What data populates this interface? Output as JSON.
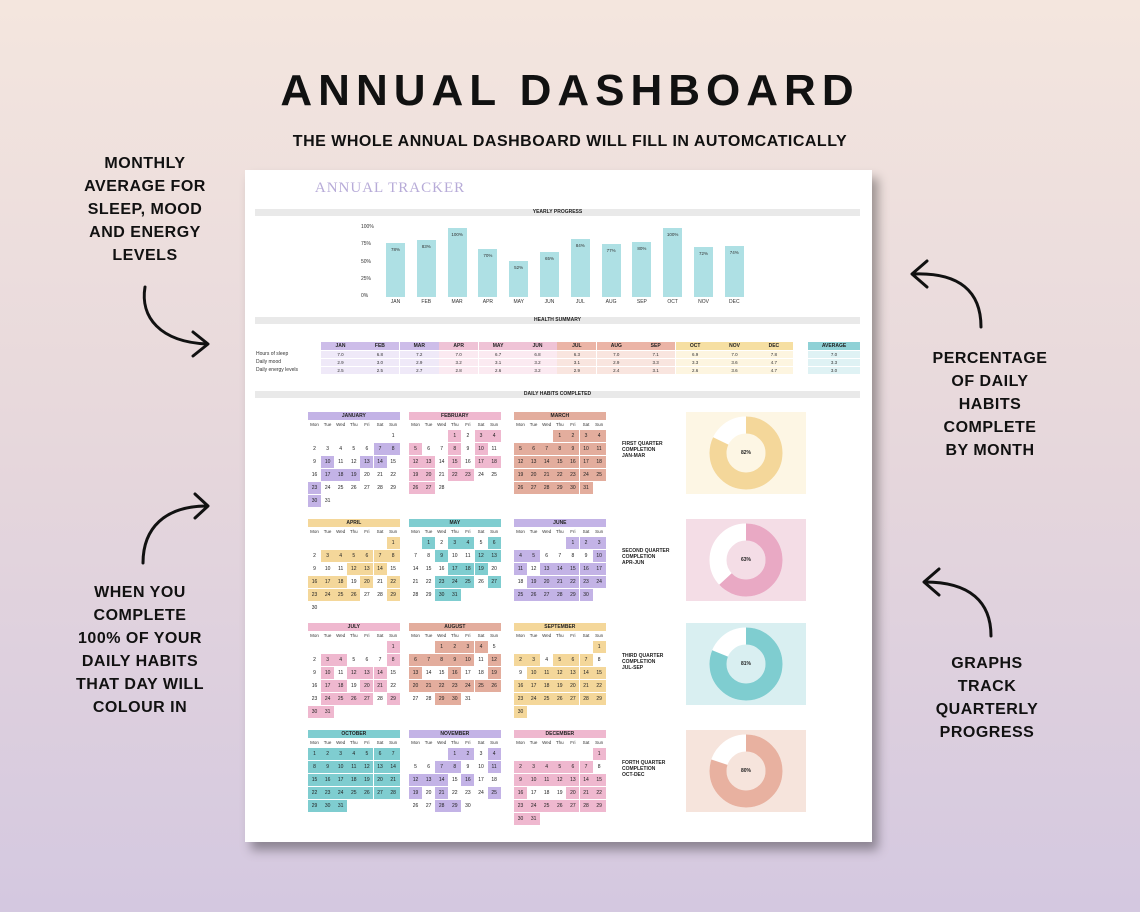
{
  "header": {
    "title": "ANNUAL DASHBOARD",
    "subtitle": "THE WHOLE ANNUAL DASHBOARD WILL FILL IN AUTOMCATICALLY"
  },
  "side_notes": {
    "top_left": [
      "MONTHLY",
      "AVERAGE FOR",
      "SLEEP, MOOD",
      "AND ENERGY",
      "LEVELS"
    ],
    "bottom_left": [
      "WHEN YOU",
      "COMPLETE",
      "100% OF YOUR",
      "DAILY HABITS",
      "THAT DAY WILL",
      "COLOUR IN"
    ],
    "top_right": [
      "PERCENTAGE",
      "OF DAILY",
      "HABITS",
      "COMPLETE",
      "BY MONTH"
    ],
    "bottom_right": [
      "GRAPHS",
      "TRACK",
      "QUARTERLY",
      "PROGRESS"
    ]
  },
  "tracker": {
    "title": "ANNUAL TRACKER",
    "yearly_progress_label": "YEARLY PROGRESS",
    "health_summary_label": "HEALTH SUMMARY",
    "daily_habits_label": "DAILY HABITS COMPLETED"
  },
  "chart_data": {
    "type": "bar",
    "title": "YEARLY PROGRESS",
    "categories": [
      "JAN",
      "FEB",
      "MAR",
      "APR",
      "MAY",
      "JUN",
      "JUL",
      "AUG",
      "SEP",
      "OCT",
      "NOV",
      "DEC"
    ],
    "values": [
      78,
      83,
      100,
      70,
      52,
      65,
      84,
      77,
      80,
      100,
      72,
      74
    ],
    "value_labels": [
      "78%",
      "83%",
      "100%",
      "70%",
      "52%",
      "65%",
      "84%",
      "77%",
      "80%",
      "100%",
      "72%",
      "74%"
    ],
    "y_ticks": [
      "100%",
      "75%",
      "50%",
      "25%",
      "0%"
    ],
    "ylim": [
      0,
      100
    ],
    "bar_color": "#aee0e4"
  },
  "health_summary": {
    "months": [
      "JAN",
      "FEB",
      "MAR",
      "APR",
      "MAY",
      "JUN",
      "JUL",
      "AUG",
      "SEP",
      "OCT",
      "NOV",
      "DEC"
    ],
    "month_colors": [
      "#cdbde9",
      "#cdbde9",
      "#cdbde9",
      "#efc3d6",
      "#efc3d6",
      "#efc3d6",
      "#ebb4a6",
      "#ebb4a6",
      "#ebb4a6",
      "#f6dfa2",
      "#f6dfa2",
      "#f6dfa2"
    ],
    "row_colors": [
      "#efe9f8",
      "#efe9f8",
      "#efe9f8",
      "#fbeaf1",
      "#fbeaf1",
      "#fbeaf1",
      "#f9e5df",
      "#f9e5df",
      "#f9e5df",
      "#fdf5e0",
      "#fdf5e0",
      "#fdf5e0"
    ],
    "rows": [
      {
        "label": "Hours of sleep",
        "values": [
          "7.0",
          "6.8",
          "7.2",
          "7.0",
          "6.7",
          "6.8",
          "6.3",
          "7.0",
          "7.1",
          "6.9",
          "7.0",
          "7.8"
        ],
        "average": "7.0"
      },
      {
        "label": "Daily mood",
        "values": [
          "2.9",
          "3.0",
          "2.9",
          "3.2",
          "3.1",
          "3.2",
          "3.1",
          "2.9",
          "3.3",
          "3.3",
          "3.6",
          "4.7"
        ],
        "average": "3.3"
      },
      {
        "label": "Daily energy levels",
        "values": [
          "2.5",
          "2.5",
          "2.7",
          "2.8",
          "2.6",
          "3.2",
          "2.9",
          "2.4",
          "3.1",
          "2.6",
          "3.6",
          "4.7"
        ],
        "average": "3.0"
      }
    ],
    "average_label": "AVERAGE",
    "average_color": "#8fd1d6"
  },
  "calendar": {
    "weekdays": [
      "Mon",
      "Tue",
      "Wed",
      "Thu",
      "Fri",
      "Sat",
      "Sun"
    ],
    "months": [
      {
        "name": "JANUARY",
        "color": "#c3b3e6",
        "start": 6,
        "days": 31,
        "filled": [
          7,
          8,
          10,
          13,
          14,
          17,
          18,
          19,
          23,
          30
        ]
      },
      {
        "name": "FEBRUARY",
        "color": "#efb8cf",
        "start": 3,
        "days": 28,
        "filled": [
          1,
          3,
          4,
          5,
          8,
          10,
          12,
          13,
          15,
          17,
          18,
          19,
          20,
          22,
          23,
          26,
          27
        ]
      },
      {
        "name": "MARCH",
        "color": "#e3ad9d",
        "start": 3,
        "days": 31,
        "filled": [
          1,
          2,
          3,
          4,
          5,
          6,
          7,
          8,
          9,
          10,
          11,
          12,
          13,
          14,
          15,
          16,
          17,
          18,
          19,
          20,
          21,
          22,
          23,
          24,
          25,
          26,
          27,
          28,
          29,
          30,
          31
        ]
      },
      {
        "name": "APRIL",
        "color": "#f4d79a",
        "start": 6,
        "days": 30,
        "filled": [
          1,
          3,
          4,
          5,
          6,
          7,
          8,
          12,
          13,
          14,
          16,
          17,
          18,
          20,
          22,
          23,
          24,
          25,
          26,
          29
        ]
      },
      {
        "name": "MAY",
        "color": "#7fcdd0",
        "start": 1,
        "days": 31,
        "filled": [
          1,
          3,
          4,
          6,
          9,
          12,
          13,
          17,
          18,
          19,
          23,
          24,
          25,
          27,
          30,
          31
        ]
      },
      {
        "name": "JUNE",
        "color": "#c3b3e6",
        "start": 4,
        "days": 30,
        "filled": [
          1,
          2,
          3,
          4,
          5,
          10,
          11,
          13,
          14,
          15,
          16,
          17,
          19,
          20,
          21,
          22,
          23,
          24,
          25,
          26,
          27,
          28,
          29,
          30
        ]
      },
      {
        "name": "JULY",
        "color": "#efb8cf",
        "start": 6,
        "days": 31,
        "filled": [
          1,
          3,
          4,
          8,
          10,
          12,
          13,
          14,
          17,
          18,
          20,
          21,
          24,
          25,
          26,
          27,
          29,
          30,
          31
        ]
      },
      {
        "name": "AUGUST",
        "color": "#e3ad9d",
        "start": 2,
        "days": 31,
        "filled": [
          1,
          2,
          3,
          4,
          6,
          7,
          8,
          9,
          10,
          12,
          13,
          16,
          19,
          20,
          21,
          22,
          23,
          24,
          25,
          26,
          29,
          30
        ]
      },
      {
        "name": "SEPTEMBER",
        "color": "#f4d79a",
        "start": 6,
        "days": 30,
        "filled": [
          1,
          2,
          3,
          5,
          6,
          7,
          10,
          11,
          12,
          13,
          14,
          15,
          16,
          17,
          18,
          19,
          20,
          21,
          22,
          23,
          24,
          25,
          26,
          27,
          28,
          29,
          30
        ]
      },
      {
        "name": "OCTOBER",
        "color": "#7fcdd0",
        "start": 0,
        "days": 31,
        "filled": [
          1,
          2,
          3,
          4,
          5,
          6,
          7,
          8,
          9,
          10,
          11,
          12,
          13,
          14,
          15,
          16,
          17,
          18,
          19,
          20,
          21,
          22,
          23,
          24,
          25,
          26,
          27,
          28,
          29,
          30,
          31
        ]
      },
      {
        "name": "NOVEMBER",
        "color": "#c3b3e6",
        "start": 3,
        "days": 30,
        "filled": [
          1,
          2,
          4,
          7,
          8,
          11,
          12,
          13,
          14,
          16,
          19,
          21,
          25,
          28,
          29
        ]
      },
      {
        "name": "DECEMBER",
        "color": "#efb8cf",
        "start": 6,
        "days": 31,
        "filled": [
          1,
          2,
          3,
          4,
          5,
          6,
          7,
          9,
          10,
          11,
          12,
          13,
          14,
          15,
          16,
          20,
          21,
          22,
          23,
          24,
          25,
          26,
          27,
          28,
          29,
          30,
          31
        ]
      }
    ]
  },
  "quarters": [
    {
      "label_lines": [
        "FIRST QUARTER",
        "COMPLETION",
        "JAN-MAR"
      ],
      "percent": 82,
      "percent_label": "82%",
      "bg": "#fdf6e4",
      "ring": "#f4d79a"
    },
    {
      "label_lines": [
        "SECOND QUARTER",
        "COMPLETION",
        "APR-JUN"
      ],
      "percent": 63,
      "percent_label": "63%",
      "bg": "#f4dde6",
      "ring": "#e9a9c4"
    },
    {
      "label_lines": [
        "THIRD QUARTER",
        "COMPLETION",
        "JUL-SEP"
      ],
      "percent": 81,
      "percent_label": "81%",
      "bg": "#d9eff1",
      "ring": "#7fcdd0"
    },
    {
      "label_lines": [
        "FORTH QUARTER",
        "COMPLETION",
        "OCT-DEC"
      ],
      "percent": 80,
      "percent_label": "80%",
      "bg": "#f6e4dc",
      "ring": "#e8b1a0"
    }
  ]
}
